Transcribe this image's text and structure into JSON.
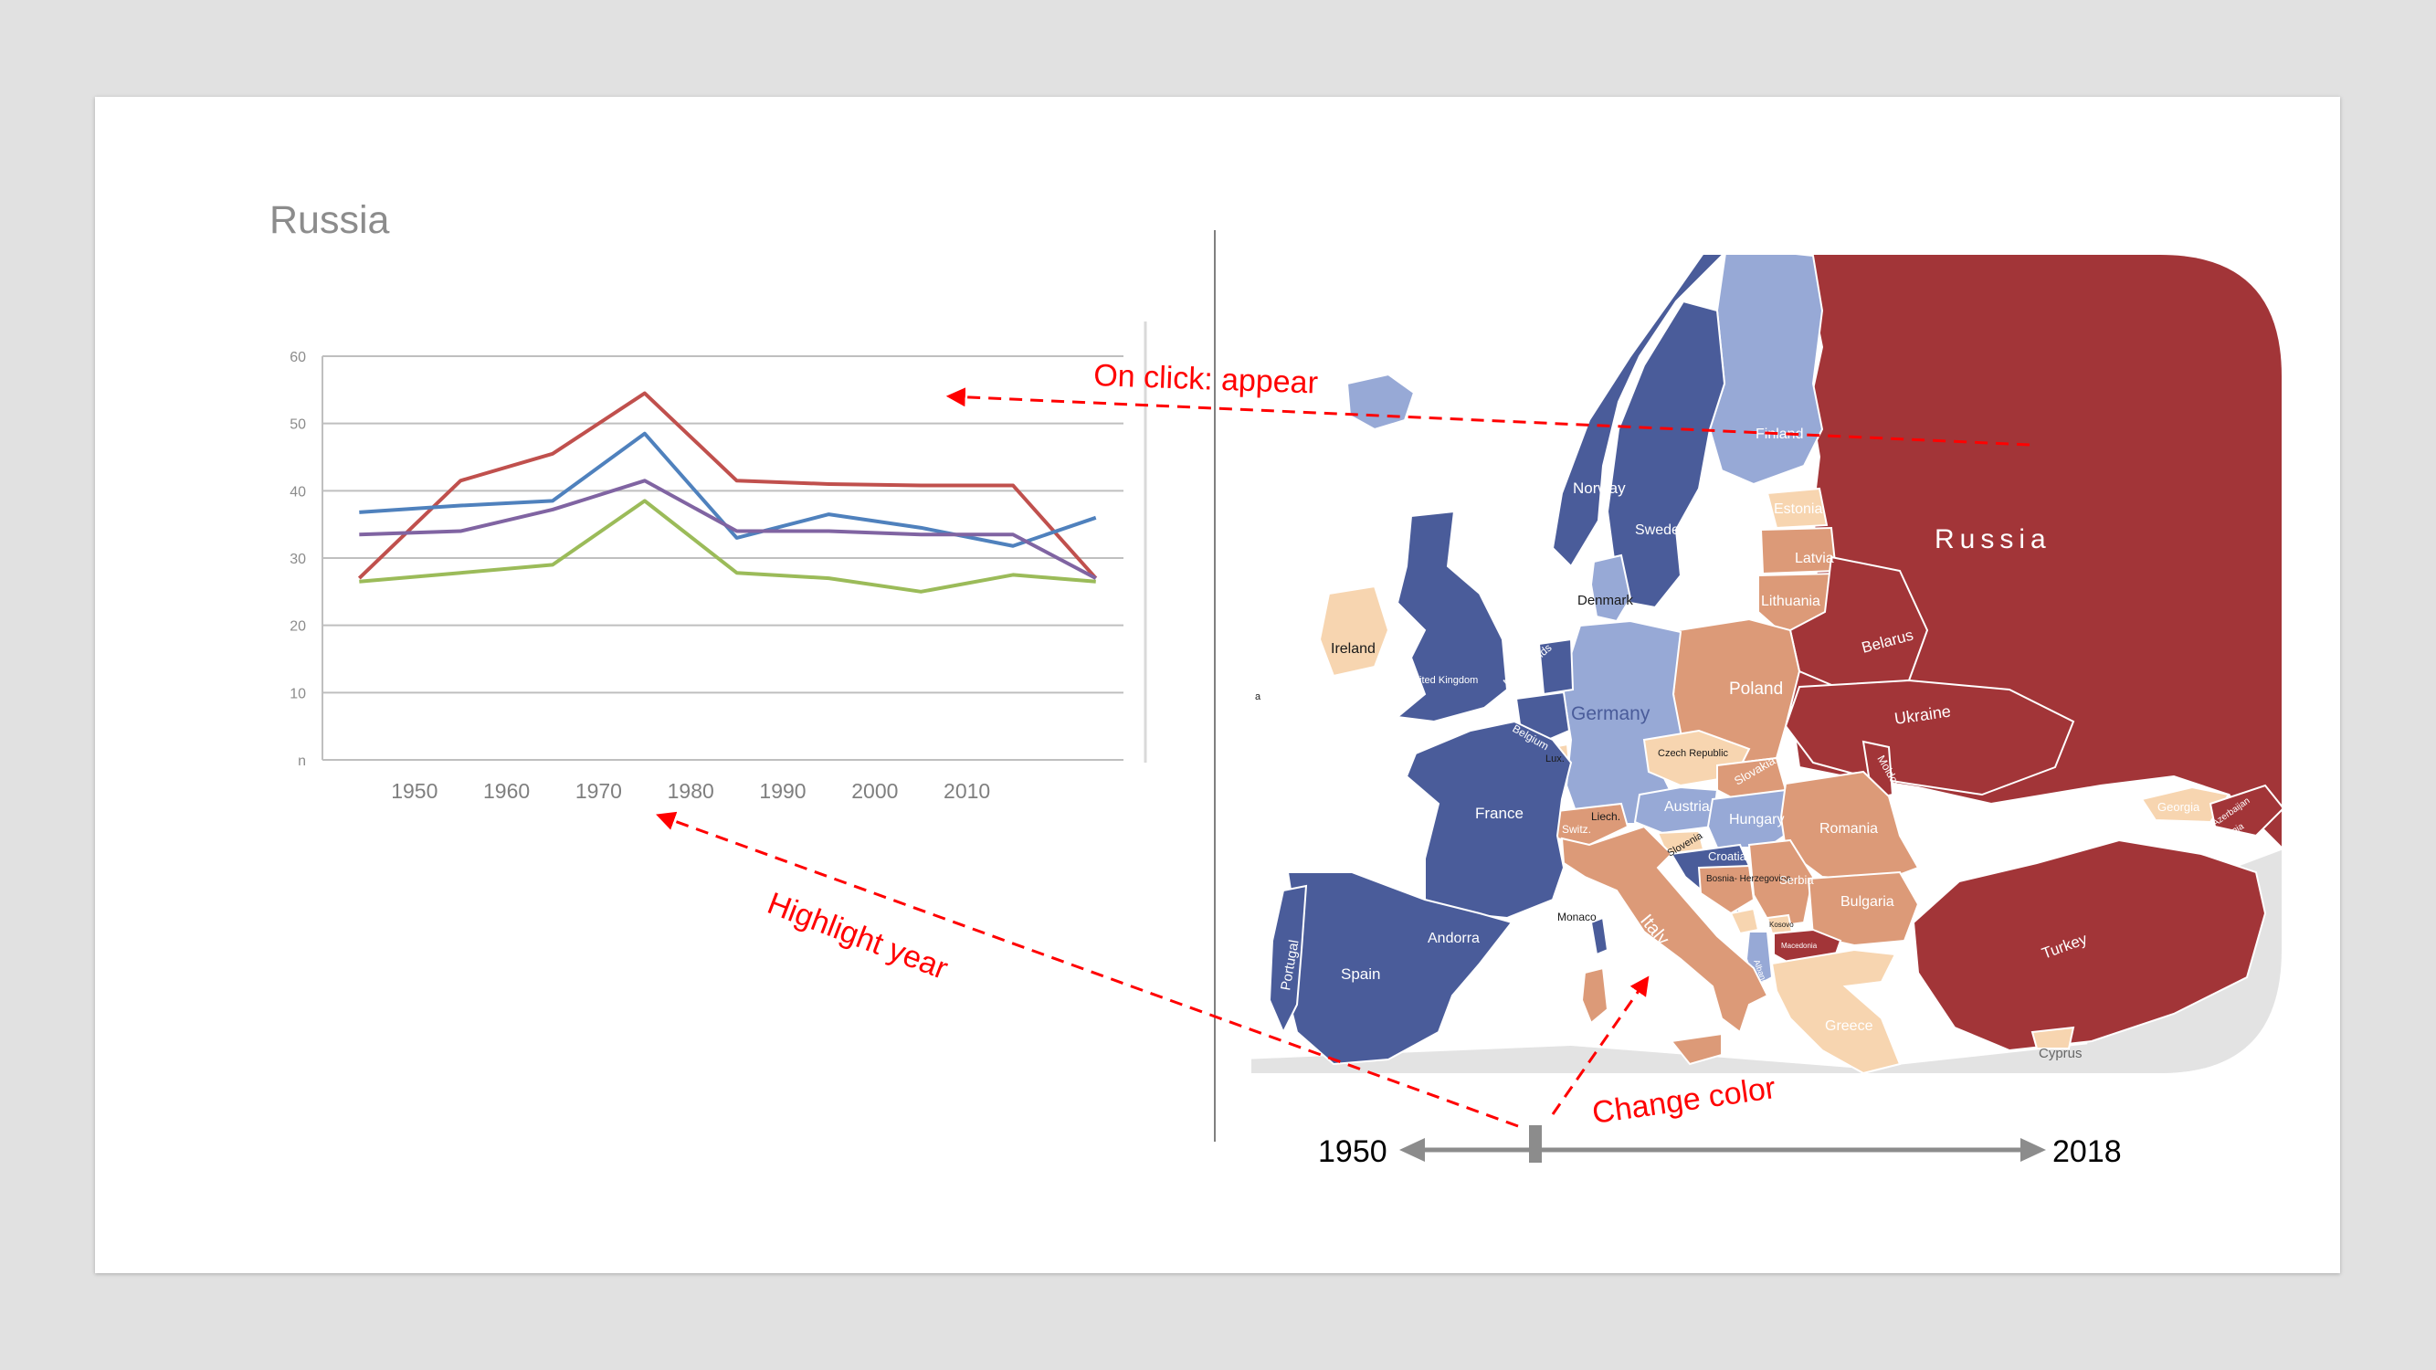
{
  "slide": {
    "annotations": {
      "on_click": "On click: appear",
      "highlight_year": "Highlight year",
      "change_color": "Change color"
    },
    "timeline": {
      "start_label": "1950",
      "end_label": "2018"
    }
  },
  "map": {
    "countries": {
      "russia": "Russia",
      "finland": "Finland",
      "norway": "Norway",
      "sweden": "Sweden",
      "estonia": "Estonia",
      "latvia": "Latvia",
      "lithuania": "Lithuania",
      "denmark": "Denmark",
      "ireland": "Ireland",
      "united_kingdom": "United Kingdom",
      "netherlands": "Netherlands",
      "belgium": "Belgium",
      "lux": "Lux.",
      "germany": "Germany",
      "poland": "Poland",
      "belarus": "Belarus",
      "ukraine": "Ukraine",
      "czech_republic": "Czech Republic",
      "slovakia": "Slovakia",
      "moldova": "Moldova",
      "austria": "Austria",
      "hungary": "Hungary",
      "romania": "Romania",
      "france": "France",
      "liech": "Liech.",
      "switz": "Switz.",
      "slovenia": "Slovenia",
      "croatia": "Croatia",
      "bosnia": "Bosnia-\nHerzegovina",
      "serbia": "Serbia",
      "bulgaria": "Bulgaria",
      "monaco": "Monaco",
      "italy": "Italy",
      "andorra": "Andorra",
      "spain": "Spain",
      "portugal": "Portugal",
      "georgia": "Georgia",
      "azerbaijan": "Azerbaijan",
      "armenia": "Armenia",
      "turkey": "Turkey",
      "greece": "Greece",
      "cyprus": "Cyprus",
      "albania": "Albania",
      "macedonia": "Macedonia",
      "kosovo": "Kosovo",
      "malta": "a"
    },
    "colors": {
      "dark_blue": "#4a5c9a",
      "light_blue": "#97a9d6",
      "salmon": "#dc9a78",
      "peach": "#f7d5b0",
      "dark_red": "#a23538",
      "sea": "#ffffff",
      "landmass_gray": "#e3e3e3"
    }
  },
  "chart_data": {
    "type": "line",
    "title": "Russia",
    "xlabel": "",
    "ylabel": "",
    "x": [
      1944,
      1955,
      1965,
      1975,
      1985,
      1995,
      2005,
      2015,
      2024
    ],
    "x_ticks": [
      1950,
      1960,
      1970,
      1980,
      1990,
      2000,
      2010
    ],
    "xlim": [
      1940,
      2027
    ],
    "ylim": [
      0,
      60
    ],
    "y_ticks": [
      0,
      10,
      20,
      30,
      40,
      50,
      60
    ],
    "y_tick_labels": [
      "n",
      "10",
      "20",
      "30",
      "40",
      "50",
      "60"
    ],
    "grid": true,
    "series": [
      {
        "color": "#c0504d",
        "values": [
          27,
          41.5,
          45.5,
          54.5,
          41.5,
          41,
          40.8,
          40.8,
          27
        ]
      },
      {
        "color": "#4f81bd",
        "values": [
          36.8,
          37.8,
          38.5,
          48.5,
          33,
          36.5,
          34.5,
          31.8,
          36
        ]
      },
      {
        "color": "#8064a2",
        "values": [
          33.5,
          34,
          37.2,
          41.5,
          34,
          34,
          33.5,
          33.5,
          27
        ]
      },
      {
        "color": "#9bbb59",
        "values": [
          26.5,
          27.8,
          29,
          38.5,
          27.8,
          27,
          25,
          27.5,
          26.5
        ]
      }
    ]
  }
}
